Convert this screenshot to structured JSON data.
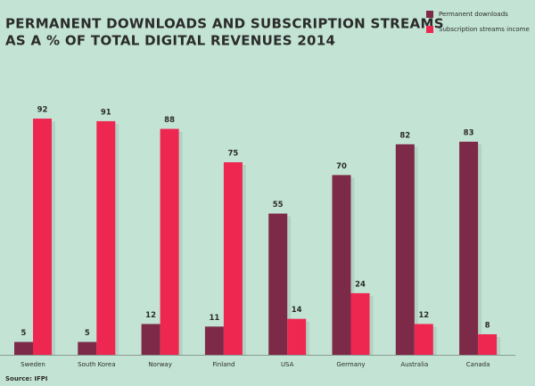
{
  "chart_data": {
    "type": "bar",
    "title": [
      "PERMANENT DOWNLOADS AND SUBSCRIPTION STREAMS",
      "AS A % OF TOTAL DIGITAL REVENUES 2014"
    ],
    "categories": [
      "Sweden",
      "South Korea",
      "Norway",
      "Finland",
      "USA",
      "Germany",
      "Australia",
      "Canada"
    ],
    "series": [
      {
        "name": "Permanent downloads",
        "color": "#7c2a47",
        "values": [
          5,
          5,
          12,
          11,
          55,
          70,
          82,
          83
        ]
      },
      {
        "name": "Subscription streams income",
        "color": "#ee2750",
        "values": [
          92,
          91,
          88,
          75,
          14,
          24,
          12,
          8
        ]
      }
    ],
    "legend": "top-right",
    "source": "Source: IFPI"
  }
}
